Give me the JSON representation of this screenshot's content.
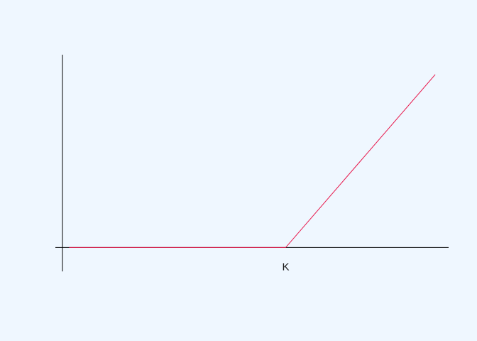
{
  "chart_data": {
    "type": "line",
    "title": "",
    "xlabel": "",
    "ylabel": "",
    "x_tick_labels": [
      {
        "x": 100,
        "label": "K"
      }
    ],
    "xlim": [
      0,
      173
    ],
    "ylim": [
      -12,
      97
    ],
    "grid": false,
    "legend": "none",
    "series": [
      {
        "color": "#e8164a",
        "points": [
          {
            "x": 3,
            "y": 0
          },
          {
            "x": 100,
            "y": 0
          },
          {
            "x": 167,
            "y": 87
          }
        ]
      }
    ]
  }
}
